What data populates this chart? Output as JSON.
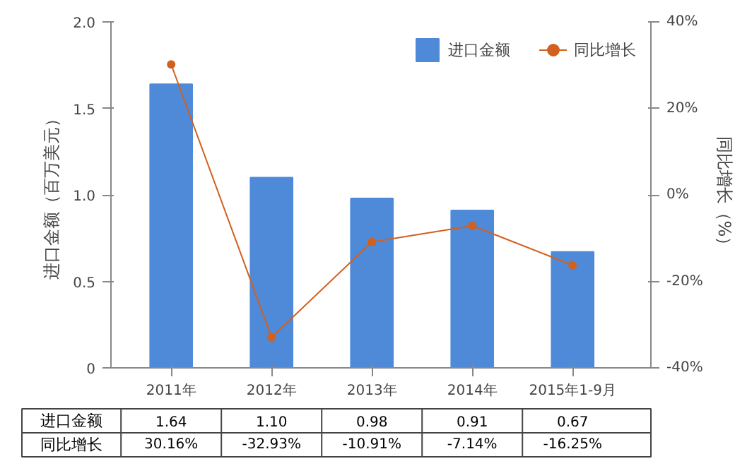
{
  "chart_data": {
    "type": "bar",
    "categories": [
      "2011年",
      "2012年",
      "2013年",
      "2014年",
      "2015年1-9月"
    ],
    "ylabel": "进口金额（百万美元）",
    "y2label": "同比增长（%）",
    "ylim": [
      0,
      2.0
    ],
    "yticks": [
      0,
      {
        "value": 0.5,
        "label": "0.5"
      },
      {
        "value": 1.0,
        "label": "1.0"
      },
      {
        "value": 1.5,
        "label": "1.5"
      },
      {
        "value": 2.0,
        "label": "2.0"
      }
    ],
    "y2lim": [
      -40,
      40
    ],
    "y2ticks": [
      {
        "value": -40,
        "label": "-40%"
      },
      {
        "value": -20,
        "label": "-20%"
      },
      {
        "value": 0,
        "label": "0%"
      },
      {
        "value": 20,
        "label": "20%"
      },
      {
        "value": 40,
        "label": "40%"
      }
    ],
    "legend": "top right",
    "marker": "circle",
    "series": [
      {
        "name": "进口金额",
        "color": "#4f8ad9",
        "values": [
          1.64,
          1.1,
          0.98,
          0.91,
          0.67
        ],
        "value_labels": [
          "1.64",
          "1.10",
          "0.98",
          "0.91",
          "0.67"
        ]
      },
      {
        "name": "同比增长",
        "type": "line",
        "axis": "y2",
        "color": "#d2601f",
        "values": [
          30.16,
          -32.93,
          -10.91,
          -7.14,
          -16.25
        ],
        "value_labels": [
          "30.16%",
          "-32.93%",
          "-10.91%",
          "-7.14%",
          "-16.25%"
        ]
      }
    ]
  }
}
